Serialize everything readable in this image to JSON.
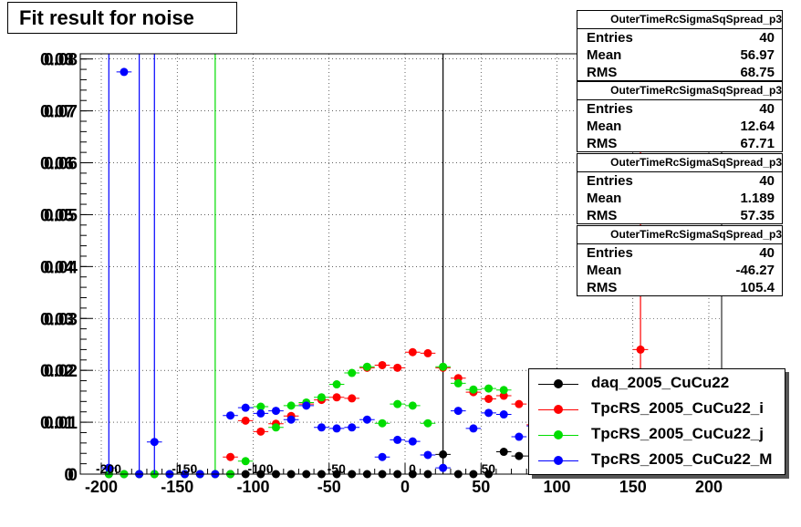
{
  "title": "Fit result for noise",
  "stats": [
    {
      "name": "OuterTimeRcSigmaSqSpread_p3",
      "entries_label": "Entries",
      "entries": "40",
      "mean_label": "Mean",
      "mean": "56.97",
      "rms_label": "RMS",
      "rms": "68.75"
    },
    {
      "name": "OuterTimeRcSigmaSqSpread_p3",
      "entries_label": "Entries",
      "entries": "40",
      "mean_label": "Mean",
      "mean": "12.64",
      "rms_label": "RMS",
      "rms": "67.71"
    },
    {
      "name": "OuterTimeRcSigmaSqSpread_p3",
      "entries_label": "Entries",
      "entries": "40",
      "mean_label": "Mean",
      "mean": "1.189",
      "rms_label": "RMS",
      "rms": "57.35"
    },
    {
      "name": "OuterTimeRcSigmaSqSpread_p3",
      "entries_label": "Entries",
      "entries": "40",
      "mean_label": "Mean",
      "mean": "-46.27",
      "rms_label": "RMS",
      "rms": "105.4"
    }
  ],
  "legend": [
    {
      "label": "daq_2005_CuCu22",
      "color": "#000000"
    },
    {
      "label": "TpcRS_2005_CuCu22_i",
      "color": "#ff0000"
    },
    {
      "label": "TpcRS_2005_CuCu22_j",
      "color": "#00dd00"
    },
    {
      "label": "TpcRS_2005_CuCu22_M",
      "color": "#0000ff"
    }
  ],
  "chart_data": {
    "type": "scatter",
    "title": "Fit result for noise",
    "xlim": [
      -200,
      210
    ],
    "ylim": [
      0,
      0.081
    ],
    "grid": true,
    "legend_position": "bottom-right",
    "x_ticks": [
      "-200",
      "-150",
      "-100",
      "-50",
      "0",
      "50",
      "100",
      "150",
      "200"
    ],
    "x_ticks_inner": [
      "-200",
      "-150",
      "-100",
      "-50",
      "0",
      "50"
    ],
    "y_ticks": [
      "0",
      "0.01",
      "0.02",
      "0.03",
      "0.04",
      "0.05",
      "0.06",
      "0.07",
      "0.08"
    ],
    "y_ticks_shadow": [
      "0",
      "0.01",
      "0.02",
      "0.03",
      "0.04",
      "0.05",
      "0.06",
      "0.07",
      "0.08"
    ],
    "x_error": 5,
    "series": [
      {
        "name": "daq_2005_CuCu22",
        "color": "#000000",
        "points": [
          [
            -195,
            0
          ],
          [
            -185,
            0
          ],
          [
            -175,
            0
          ],
          [
            -165,
            0
          ],
          [
            -155,
            0
          ],
          [
            -145,
            0
          ],
          [
            -135,
            0
          ],
          [
            -125,
            0
          ],
          [
            -115,
            0
          ],
          [
            -105,
            0
          ],
          [
            -95,
            0
          ],
          [
            -85,
            0
          ],
          [
            -75,
            0
          ],
          [
            -65,
            0
          ],
          [
            -55,
            0
          ],
          [
            -45,
            0
          ],
          [
            -35,
            0
          ],
          [
            -25,
            0
          ],
          [
            -15,
            0
          ],
          [
            -5,
            0
          ],
          [
            5,
            0
          ],
          [
            15,
            0
          ],
          [
            25,
            0.0038
          ],
          [
            35,
            0
          ],
          [
            45,
            0
          ],
          [
            55,
            0
          ],
          [
            65,
            0.0043
          ],
          [
            75,
            0.0035
          ],
          [
            85,
            0.0035
          ],
          [
            95,
            0
          ],
          [
            105,
            0
          ],
          [
            115,
            0
          ],
          [
            125,
            0
          ],
          [
            135,
            0
          ],
          [
            145,
            0
          ],
          [
            155,
            0
          ],
          [
            165,
            0
          ],
          [
            175,
            0
          ],
          [
            185,
            0
          ],
          [
            195,
            0
          ]
        ],
        "vlines": [
          25
        ]
      },
      {
        "name": "TpcRS_2005_CuCu22_i",
        "color": "#ff0000",
        "points": [
          [
            -115,
            0.0033
          ],
          [
            -105,
            0.0103
          ],
          [
            -95,
            0.0082
          ],
          [
            -85,
            0.0097
          ],
          [
            -75,
            0.0112
          ],
          [
            -65,
            0.0135
          ],
          [
            -55,
            0.0143
          ],
          [
            -45,
            0.0148
          ],
          [
            -35,
            0.0146
          ],
          [
            -25,
            0.0205
          ],
          [
            -15,
            0.021
          ],
          [
            -5,
            0.0205
          ],
          [
            5,
            0.0235
          ],
          [
            15,
            0.0233
          ],
          [
            25,
            0.0205
          ],
          [
            35,
            0.0185
          ],
          [
            45,
            0.0158
          ],
          [
            55,
            0.0145
          ],
          [
            65,
            0.0151
          ],
          [
            75,
            0.0135
          ],
          [
            85,
            0.0095
          ],
          [
            155,
            0.024
          ]
        ],
        "vlines": [
          155
        ]
      },
      {
        "name": "TpcRS_2005_CuCu22_j",
        "color": "#00dd00",
        "points": [
          [
            -195,
            0
          ],
          [
            -185,
            0
          ],
          [
            -175,
            0
          ],
          [
            -165,
            0
          ],
          [
            -155,
            0
          ],
          [
            -145,
            0
          ],
          [
            -135,
            0
          ],
          [
            -125,
            0
          ],
          [
            -115,
            0
          ],
          [
            -105,
            0.0025
          ],
          [
            -95,
            0.013
          ],
          [
            -85,
            0.009
          ],
          [
            -75,
            0.0132
          ],
          [
            -65,
            0.0138
          ],
          [
            -55,
            0.0148
          ],
          [
            -45,
            0.0173
          ],
          [
            -35,
            0.0195
          ],
          [
            -25,
            0.0207
          ],
          [
            -15,
            0.0098
          ],
          [
            -5,
            0.0135
          ],
          [
            5,
            0.0132
          ],
          [
            15,
            0.0098
          ],
          [
            25,
            0.0207
          ],
          [
            35,
            0.0175
          ],
          [
            45,
            0.0163
          ],
          [
            55,
            0.0165
          ],
          [
            65,
            0.0162
          ]
        ],
        "vlines": [
          -125
        ]
      },
      {
        "name": "TpcRS_2005_CuCu22_M",
        "color": "#0000ff",
        "points": [
          [
            -195,
            0.0012
          ],
          [
            -185,
            0.0775
          ],
          [
            -175,
            0
          ],
          [
            -165,
            0.0062
          ],
          [
            -155,
            0
          ],
          [
            -145,
            0
          ],
          [
            -135,
            0
          ],
          [
            -125,
            0
          ],
          [
            -115,
            0.0113
          ],
          [
            -105,
            0.0128
          ],
          [
            -95,
            0.0117
          ],
          [
            -85,
            0.0122
          ],
          [
            -75,
            0.0105
          ],
          [
            -65,
            0.0132
          ],
          [
            -55,
            0.009
          ],
          [
            -45,
            0.0088
          ],
          [
            -35,
            0.009
          ],
          [
            -25,
            0.0105
          ],
          [
            -15,
            0.0033
          ],
          [
            -5,
            0.0066
          ],
          [
            5,
            0.0063
          ],
          [
            15,
            0.0037
          ],
          [
            25,
            0.0012
          ],
          [
            35,
            0.0122
          ],
          [
            45,
            0.0088
          ],
          [
            55,
            0.0118
          ],
          [
            65,
            0.0115
          ],
          [
            75,
            0.0072
          ],
          [
            85,
            0.0093
          ],
          [
            125,
            0
          ],
          [
            135,
            0
          ],
          [
            145,
            0
          ],
          [
            155,
            0
          ],
          [
            165,
            0
          ],
          [
            175,
            0
          ],
          [
            185,
            0
          ],
          [
            195,
            0
          ]
        ],
        "vlines": [
          -195,
          -175,
          -165
        ]
      }
    ]
  }
}
